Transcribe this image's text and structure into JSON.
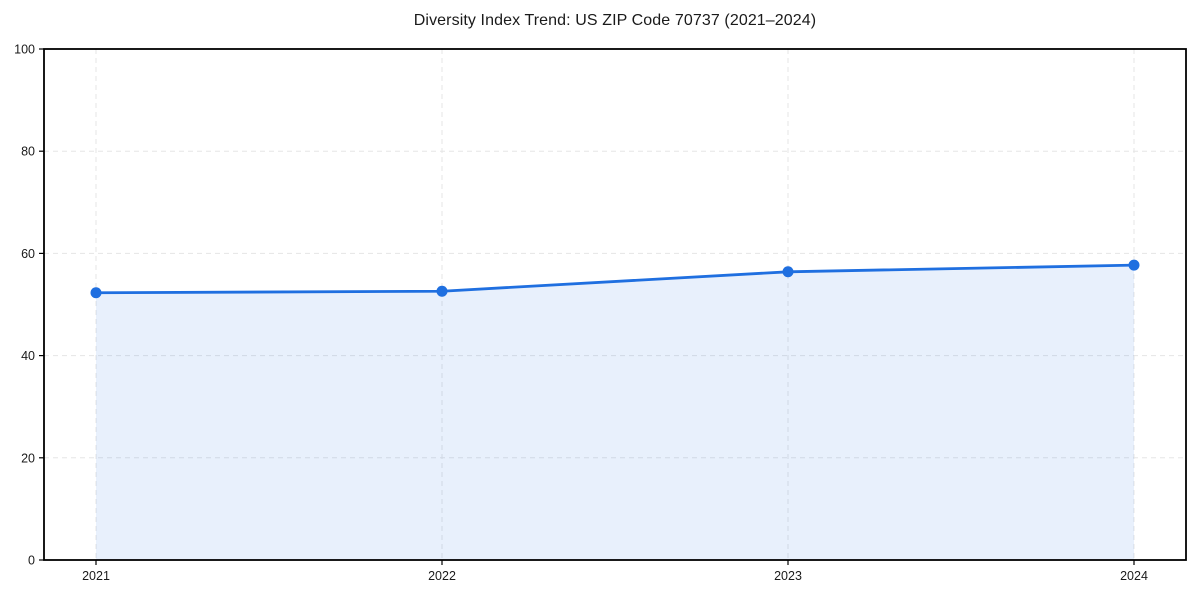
{
  "chart_data": {
    "type": "line",
    "title": "Diversity Index Trend: US ZIP Code 70737 (2021–2024)",
    "categories": [
      "2021",
      "2022",
      "2023",
      "2024"
    ],
    "series": [
      {
        "name": "Diversity Index",
        "values": [
          52.3,
          52.6,
          56.4,
          57.7
        ]
      }
    ],
    "xlabel": "",
    "ylabel": "",
    "ylim": [
      0,
      100
    ],
    "yticks": [
      0,
      20,
      40,
      60,
      80,
      100
    ],
    "grid": {
      "horizontal": true,
      "vertical": true,
      "style": "dashed",
      "color": "#e5e5e5"
    },
    "legend": "none",
    "marker": "circle",
    "area_fill": true,
    "colors": {
      "line": "#1f6fe0",
      "marker": "#1f6fe0",
      "area": "#1f6fe0",
      "area_opacity": 0.1,
      "spine": "#000000",
      "tick": "#000000",
      "tick_label": "#1a1a1a",
      "background": "#ffffff"
    }
  }
}
